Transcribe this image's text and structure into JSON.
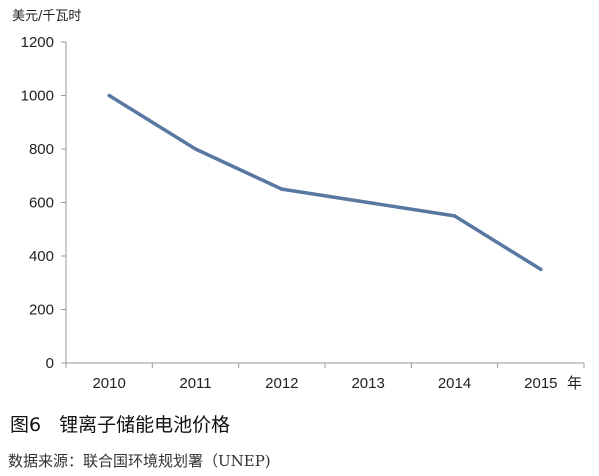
{
  "chart_data": {
    "type": "line",
    "ylabel": "美元/千瓦时",
    "xlabel": "年",
    "categories": [
      "2010",
      "2011",
      "2012",
      "2013",
      "2014",
      "2015"
    ],
    "series": [
      {
        "values": [
          1000,
          800,
          650,
          600,
          550,
          350
        ]
      }
    ],
    "ylim": [
      0,
      1200
    ],
    "yticks": [
      0,
      200,
      400,
      600,
      800,
      1000,
      1200
    ],
    "grid": false,
    "line_color": "#5877a1"
  },
  "caption": {
    "figure_number": "图6",
    "title": "锂离子储能电池价格"
  },
  "source": "数据来源：联合国环境规划署（UNEP)"
}
